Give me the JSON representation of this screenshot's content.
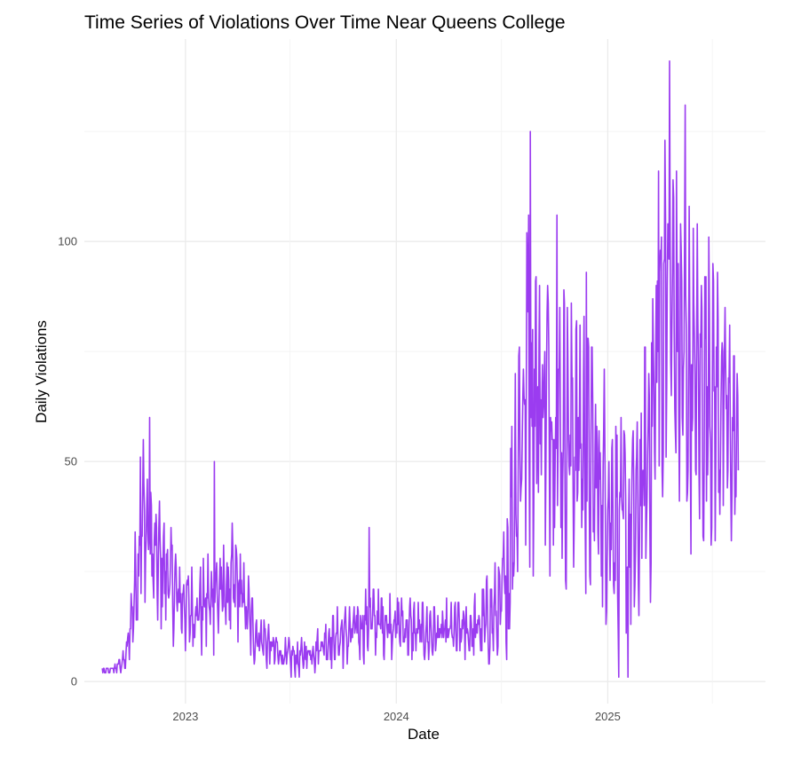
{
  "chart_data": {
    "type": "line",
    "title": "Time Series of Violations Over Time Near Queens College",
    "xlabel": "Date",
    "ylabel": "Daily Violations",
    "x_ticks": [
      "2023",
      "2024",
      "2025"
    ],
    "y_ticks": [
      0,
      50,
      100
    ],
    "xlim": [
      "2022-07-10",
      "2025-10-01"
    ],
    "ylim": [
      -5,
      146
    ],
    "grid": true,
    "legend": "none",
    "line_color": "#9B3CF0",
    "series": [
      {
        "start_date": "2022-08-10",
        "end_date": "2025-08-15",
        "x": [
          "2022-08-10",
          "2022-09-01",
          "2022-09-20",
          "2022-10-05",
          "2022-10-20",
          "2022-11-05",
          "2022-11-25",
          "2022-12-15",
          "2023-01-10",
          "2023-02-01",
          "2023-03-01",
          "2023-04-01",
          "2023-05-01",
          "2023-05-20",
          "2023-06-15",
          "2023-07-15",
          "2023-09-01",
          "2023-10-15",
          "2023-11-20",
          "2024-01-01",
          "2024-02-15",
          "2024-04-01",
          "2024-05-20",
          "2024-06-30",
          "2024-07-10",
          "2024-08-01",
          "2024-08-15",
          "2024-09-15",
          "2024-10-15",
          "2024-11-15",
          "2024-12-15",
          "2025-01-15",
          "2025-02-01",
          "2025-02-20",
          "2025-03-15",
          "2025-04-01",
          "2025-04-15",
          "2025-05-01",
          "2025-05-20",
          "2025-06-15",
          "2025-07-15",
          "2025-08-15"
        ],
        "y": [
          2,
          3,
          5,
          20,
          38,
          28,
          26,
          20,
          16,
          17,
          20,
          22,
          11,
          9,
          6,
          5,
          9,
          11,
          14,
          13,
          11,
          11,
          12,
          16,
          25,
          55,
          68,
          64,
          58,
          55,
          45,
          38,
          36,
          35,
          55,
          75,
          88,
          78,
          70,
          66,
          64,
          52
        ],
        "amplitude": [
          1,
          1,
          2,
          8,
          12,
          11,
          10,
          8,
          7,
          8,
          9,
          9,
          5,
          4,
          3,
          3,
          4,
          5,
          6,
          5,
          5,
          5,
          6,
          8,
          15,
          25,
          28,
          26,
          24,
          22,
          20,
          17,
          17,
          18,
          25,
          30,
          33,
          30,
          26,
          24,
          22,
          15
        ]
      }
    ]
  }
}
